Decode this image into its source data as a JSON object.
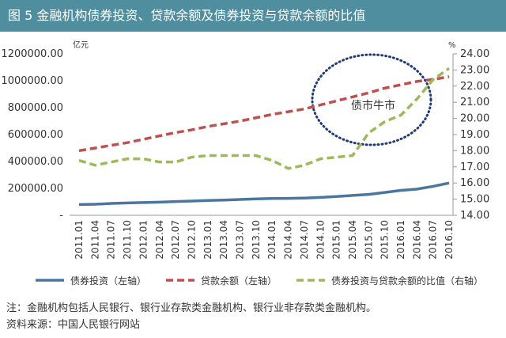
{
  "chart_data": {
    "type": "line",
    "title": "图 5 金融机构债券投资、贷款余额及债券投资与贷款余额的比值",
    "y_unit": "亿元",
    "y2_unit": "%",
    "categories": [
      "2011.01",
      "2011.04",
      "2011.07",
      "2011.10",
      "2012.01",
      "2012.04",
      "2012.07",
      "2012.10",
      "2013.01",
      "2013.04",
      "2013.07",
      "2013.10",
      "2014.01",
      "2014.04",
      "2014.07",
      "2014.10",
      "2015.01",
      "2015.04",
      "2015.07",
      "2015.10",
      "2016.01",
      "2016.04",
      "2016.07",
      "2016.10"
    ],
    "series": [
      {
        "name": "债券投资（左轴）",
        "color": "#4a76a0",
        "style": "solid",
        "values": [
          80000,
          82000,
          88000,
          92000,
          95000,
          98000,
          102000,
          106000,
          110000,
          113000,
          118000,
          122000,
          125000,
          126000,
          128000,
          133000,
          140000,
          148000,
          155000,
          170000,
          185000,
          195000,
          215000,
          240000
        ]
      },
      {
        "name": "贷款余额（左轴）",
        "color": "#c0504d",
        "style": "dashed",
        "values": [
          480000,
          500000,
          520000,
          540000,
          565000,
          590000,
          615000,
          635000,
          660000,
          680000,
          700000,
          725000,
          750000,
          770000,
          790000,
          820000,
          850000,
          880000,
          910000,
          945000,
          970000,
          995000,
          1010000,
          1030000
        ]
      },
      {
        "name": "债券投资与贷款余额的比值（右轴）",
        "color": "#9bbb59",
        "style": "dashed",
        "axis": "y2",
        "values": [
          17.4,
          17.1,
          17.3,
          17.5,
          17.5,
          17.3,
          17.3,
          17.6,
          17.7,
          17.7,
          17.7,
          17.7,
          17.4,
          16.9,
          17.1,
          17.5,
          17.6,
          17.7,
          19.1,
          19.8,
          20.2,
          21.2,
          22.4,
          23.1
        ]
      }
    ],
    "ylim": [
      0,
      1200000
    ],
    "yticks": [
      {
        "value": 0,
        "label": "-"
      },
      {
        "value": 200000,
        "label": "200000.00"
      },
      {
        "value": 400000,
        "label": "400000.00"
      },
      {
        "value": 600000,
        "label": "600000.00"
      },
      {
        "value": 800000,
        "label": "800000.00"
      },
      {
        "value": 1000000,
        "label": "1000000.00"
      },
      {
        "value": 1200000,
        "label": "1200000.00"
      }
    ],
    "y2lim": [
      14,
      24
    ],
    "y2ticks": [
      {
        "value": 14,
        "label": "14.00"
      },
      {
        "value": 15,
        "label": "15.00"
      },
      {
        "value": 16,
        "label": "16.00"
      },
      {
        "value": 17,
        "label": "17.00"
      },
      {
        "value": 18,
        "label": "18.00"
      },
      {
        "value": 19,
        "label": "19.00"
      },
      {
        "value": 20,
        "label": "20.00"
      },
      {
        "value": 21,
        "label": "21.00"
      },
      {
        "value": 22,
        "label": "22.00"
      },
      {
        "value": 23,
        "label": "23.00"
      },
      {
        "value": 24,
        "label": "24.00"
      }
    ],
    "annotations": [
      {
        "text": "债市牛市"
      }
    ],
    "notes": [
      "注：金融机构包括人民银行、银行业存款类金融机构、银行业非存款类金融机构。",
      "资料来源：中国人民银行网站"
    ]
  }
}
